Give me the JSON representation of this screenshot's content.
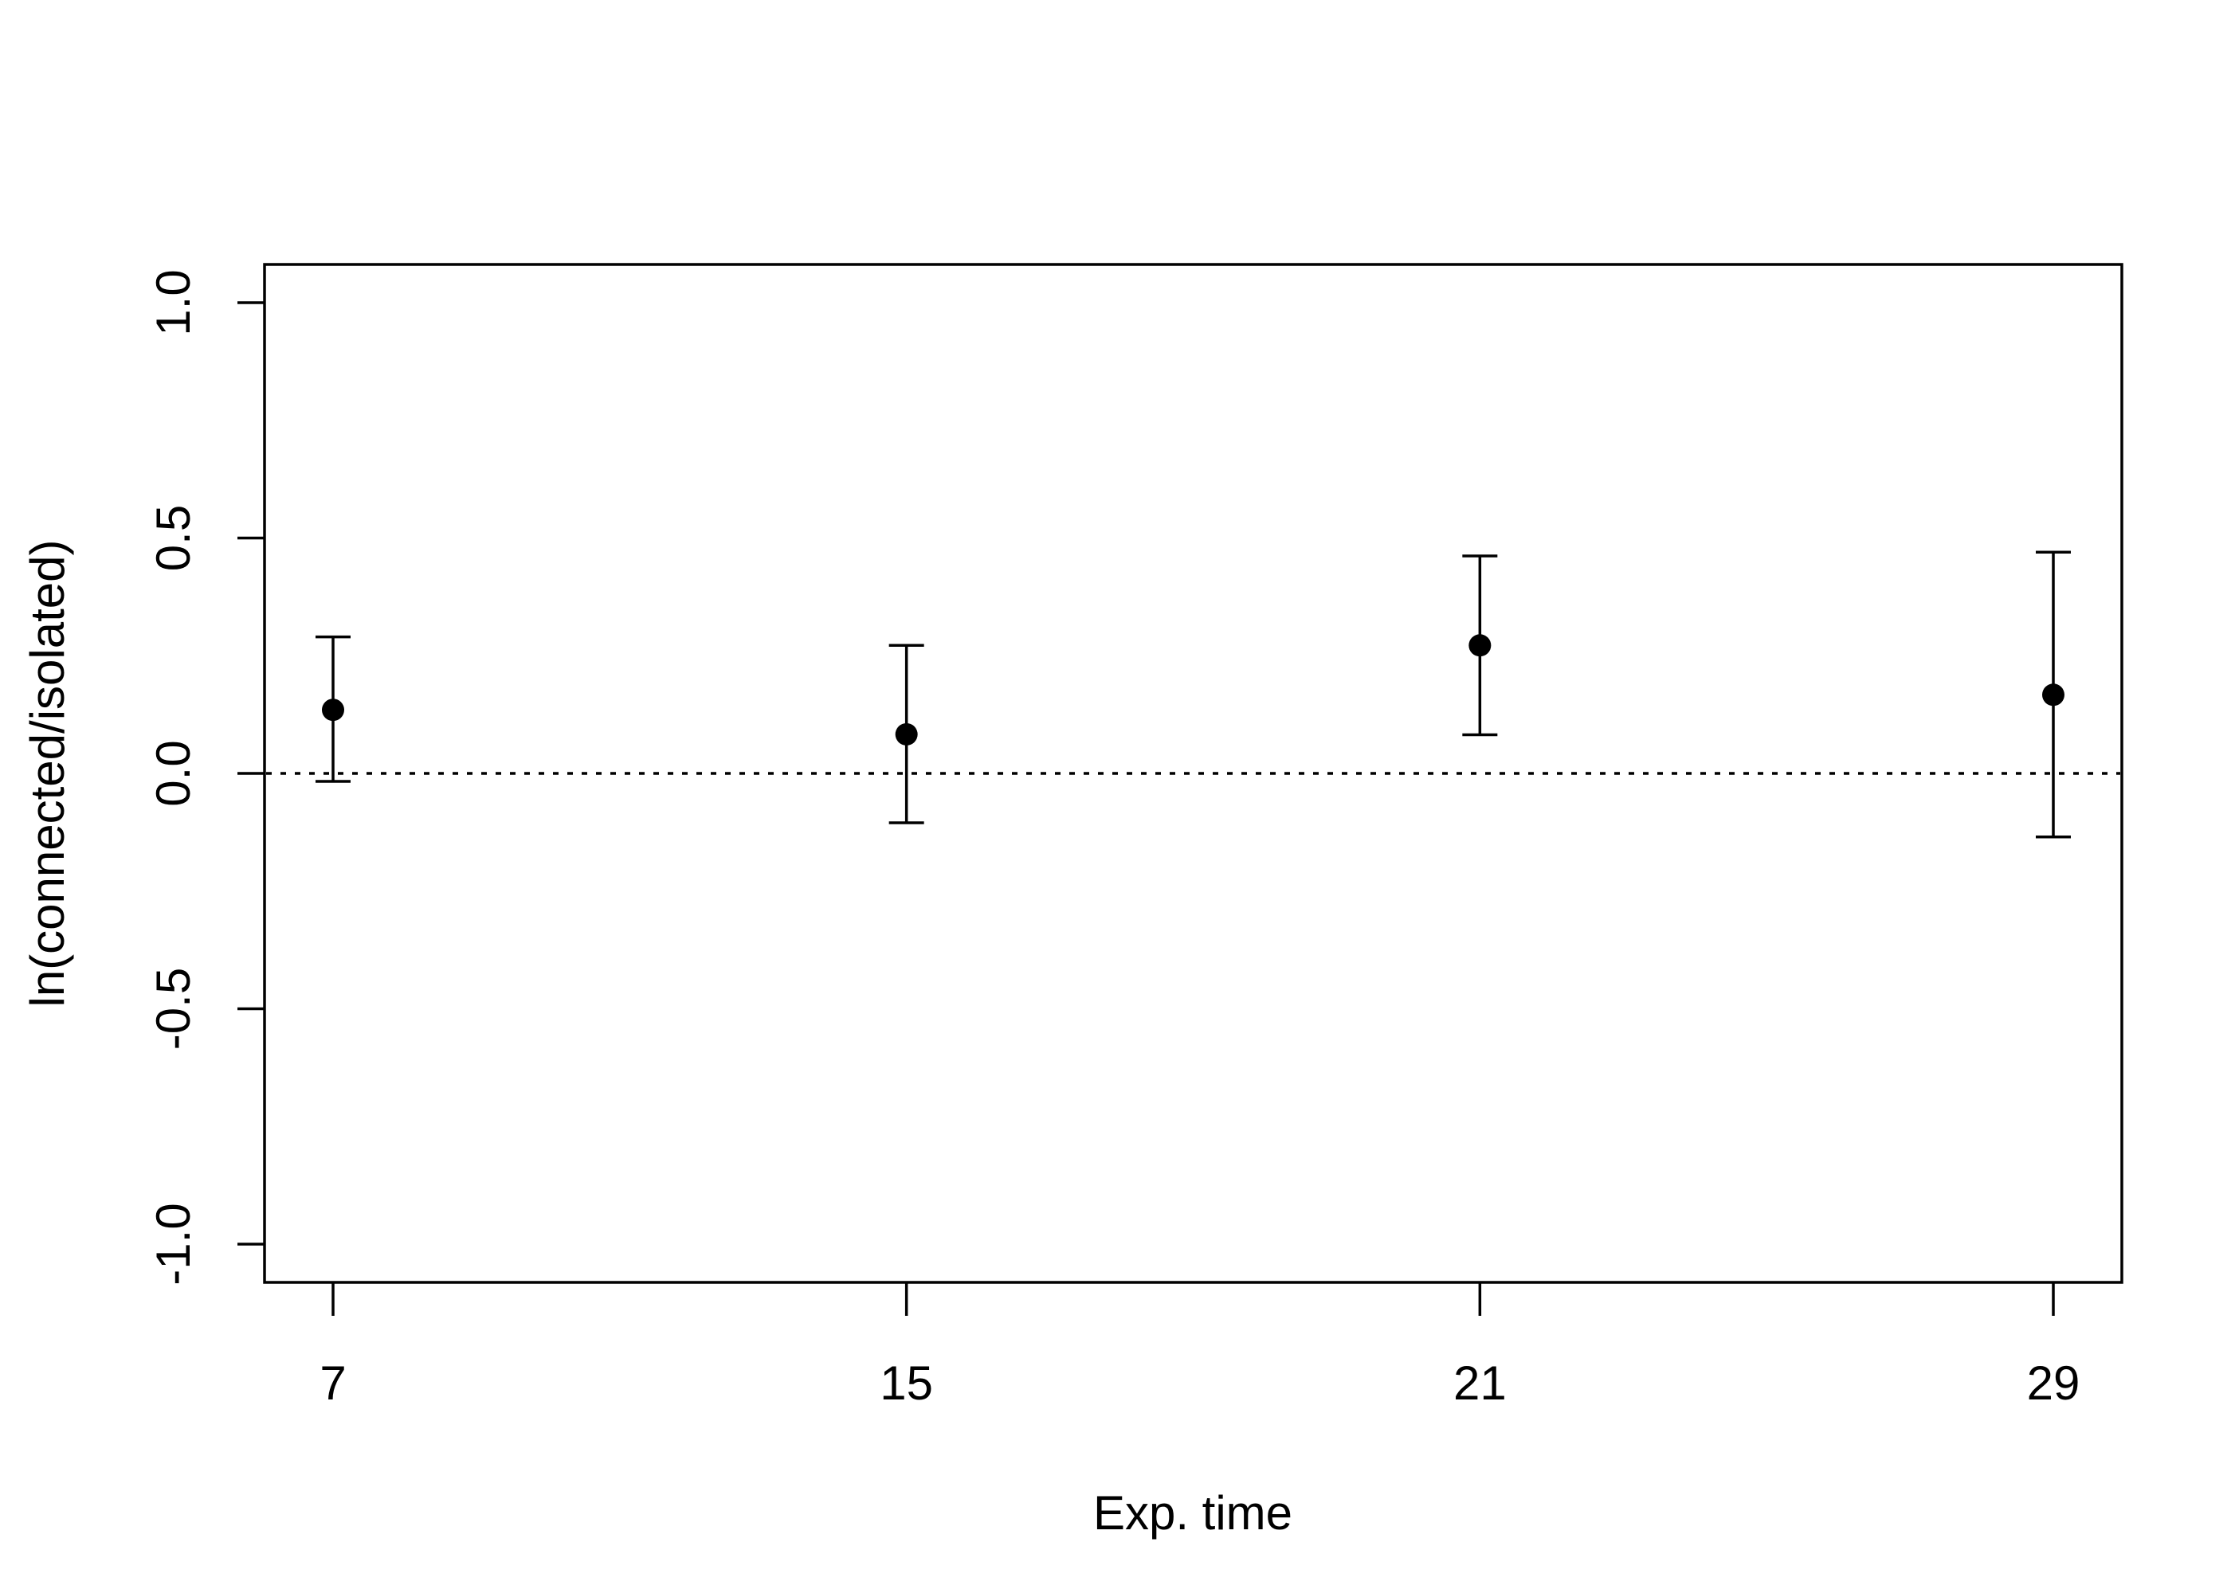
{
  "chart_data": {
    "type": "scatter",
    "title": "",
    "xlabel": "Exp. time",
    "ylabel": "ln(connected/isolated)",
    "categories": [
      "7",
      "15",
      "21",
      "29"
    ],
    "yticks": [
      "-1.0",
      "-0.5",
      "0.0",
      "0.5",
      "1.0"
    ],
    "ylim": [
      -1.08,
      1.08
    ],
    "grid": false,
    "legend": "none",
    "reference_line": 0.0,
    "series": [
      {
        "values": [
          0.135,
          0.083,
          0.272,
          0.167
        ],
        "lower": [
          -0.017,
          -0.105,
          0.082,
          -0.135
        ],
        "upper": [
          0.29,
          0.272,
          0.462,
          0.47
        ]
      }
    ],
    "colors": {
      "marker": "#000000",
      "line": "#000000"
    }
  }
}
